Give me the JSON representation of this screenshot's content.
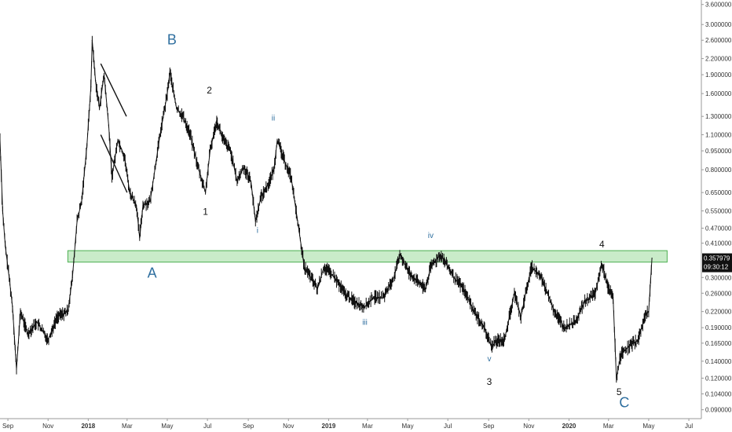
{
  "chart_data": {
    "type": "line",
    "title": "",
    "xlabel": "",
    "ylabel": "",
    "y_scale": "log",
    "ylim": [
      0.083,
      3.75
    ],
    "xlim": [
      "2017-08-20",
      "2020-07-20"
    ],
    "grid": false,
    "legend": "none",
    "colors": {
      "price": "#111111",
      "zone_fill": "#bfe8bf",
      "zone_border": "#4caf50",
      "wave_label": "#2f6f9f",
      "badge_bg": "#111111"
    },
    "x_ticks": [
      {
        "date": "2017-09-01",
        "label": "Sep",
        "bold": false
      },
      {
        "date": "2017-11-01",
        "label": "Nov",
        "bold": false
      },
      {
        "date": "2018-01-01",
        "label": "2018",
        "bold": true
      },
      {
        "date": "2018-03-01",
        "label": "Mar",
        "bold": false
      },
      {
        "date": "2018-05-01",
        "label": "May",
        "bold": false
      },
      {
        "date": "2018-07-01",
        "label": "Jul",
        "bold": false
      },
      {
        "date": "2018-09-01",
        "label": "Sep",
        "bold": false
      },
      {
        "date": "2018-11-01",
        "label": "Nov",
        "bold": false
      },
      {
        "date": "2019-01-01",
        "label": "2019",
        "bold": true
      },
      {
        "date": "2019-03-01",
        "label": "Mar",
        "bold": false
      },
      {
        "date": "2019-05-01",
        "label": "May",
        "bold": false
      },
      {
        "date": "2019-07-01",
        "label": "Jul",
        "bold": false
      },
      {
        "date": "2019-09-01",
        "label": "Sep",
        "bold": false
      },
      {
        "date": "2019-11-01",
        "label": "Nov",
        "bold": false
      },
      {
        "date": "2020-01-01",
        "label": "2020",
        "bold": true
      },
      {
        "date": "2020-03-01",
        "label": "Mar",
        "bold": false
      },
      {
        "date": "2020-05-01",
        "label": "May",
        "bold": false
      },
      {
        "date": "2020-07-01",
        "label": "Jul",
        "bold": false
      }
    ],
    "y_ticks": [
      {
        "value": 3.6,
        "label": "3.600000"
      },
      {
        "value": 3.0,
        "label": "3.000000"
      },
      {
        "value": 2.6,
        "label": "2.600000"
      },
      {
        "value": 2.2,
        "label": "2.200000"
      },
      {
        "value": 1.9,
        "label": "1.900000"
      },
      {
        "value": 1.6,
        "label": "1.600000"
      },
      {
        "value": 1.3,
        "label": "1.300000"
      },
      {
        "value": 1.1,
        "label": "1.100000"
      },
      {
        "value": 0.95,
        "label": "0.950000"
      },
      {
        "value": 0.8,
        "label": "0.800000"
      },
      {
        "value": 0.65,
        "label": "0.650000"
      },
      {
        "value": 0.55,
        "label": "0.550000"
      },
      {
        "value": 0.47,
        "label": "0.470000"
      },
      {
        "value": 0.41,
        "label": "0.410000"
      },
      {
        "value": 0.3,
        "label": "0.300000"
      },
      {
        "value": 0.26,
        "label": "0.260000"
      },
      {
        "value": 0.22,
        "label": "0.220000"
      },
      {
        "value": 0.19,
        "label": "0.190000"
      },
      {
        "value": 0.165,
        "label": "0.165000"
      },
      {
        "value": 0.14,
        "label": "0.140000"
      },
      {
        "value": 0.12,
        "label": "0.120000"
      },
      {
        "value": 0.104,
        "label": "0.104000"
      },
      {
        "value": 0.09,
        "label": "0.090000"
      }
    ],
    "price_badge": {
      "value": 0.357979,
      "label": "0.357979"
    },
    "countdown": "09:30:12",
    "series": [
      {
        "values": [
          {
            "x": "2017-08-20",
            "y": 1.05
          },
          {
            "x": "2017-08-24",
            "y": 0.55
          },
          {
            "x": "2017-08-28",
            "y": 0.4
          },
          {
            "x": "2017-09-03",
            "y": 0.3
          },
          {
            "x": "2017-09-08",
            "y": 0.23
          },
          {
            "x": "2017-09-14",
            "y": 0.13
          },
          {
            "x": "2017-09-20",
            "y": 0.22
          },
          {
            "x": "2017-10-01",
            "y": 0.18
          },
          {
            "x": "2017-10-15",
            "y": 0.2
          },
          {
            "x": "2017-11-01",
            "y": 0.17
          },
          {
            "x": "2017-11-15",
            "y": 0.21
          },
          {
            "x": "2017-12-01",
            "y": 0.22
          },
          {
            "x": "2017-12-08",
            "y": 0.3
          },
          {
            "x": "2017-12-15",
            "y": 0.5
          },
          {
            "x": "2017-12-22",
            "y": 0.6
          },
          {
            "x": "2017-12-30",
            "y": 1.0
          },
          {
            "x": "2018-01-05",
            "y": 1.7
          },
          {
            "x": "2018-01-07",
            "y": 2.6
          },
          {
            "x": "2018-01-12",
            "y": 1.8
          },
          {
            "x": "2018-01-18",
            "y": 1.4
          },
          {
            "x": "2018-01-25",
            "y": 1.9
          },
          {
            "x": "2018-02-01",
            "y": 1.2
          },
          {
            "x": "2018-02-06",
            "y": 0.75
          },
          {
            "x": "2018-02-15",
            "y": 1.05
          },
          {
            "x": "2018-02-25",
            "y": 0.9
          },
          {
            "x": "2018-03-05",
            "y": 0.65
          },
          {
            "x": "2018-03-15",
            "y": 0.58
          },
          {
            "x": "2018-03-20",
            "y": 0.43
          },
          {
            "x": "2018-03-25",
            "y": 0.58
          },
          {
            "x": "2018-04-05",
            "y": 0.6
          },
          {
            "x": "2018-04-20",
            "y": 1.1
          },
          {
            "x": "2018-05-01",
            "y": 1.6
          },
          {
            "x": "2018-05-05",
            "y": 1.95
          },
          {
            "x": "2018-05-15",
            "y": 1.4
          },
          {
            "x": "2018-05-25",
            "y": 1.3
          },
          {
            "x": "2018-06-05",
            "y": 1.1
          },
          {
            "x": "2018-06-15",
            "y": 0.85
          },
          {
            "x": "2018-06-28",
            "y": 0.65
          },
          {
            "x": "2018-07-05",
            "y": 0.95
          },
          {
            "x": "2018-07-15",
            "y": 1.25
          },
          {
            "x": "2018-07-25",
            "y": 1.05
          },
          {
            "x": "2018-08-05",
            "y": 0.95
          },
          {
            "x": "2018-08-15",
            "y": 0.72
          },
          {
            "x": "2018-08-25",
            "y": 0.82
          },
          {
            "x": "2018-09-05",
            "y": 0.72
          },
          {
            "x": "2018-09-12",
            "y": 0.5
          },
          {
            "x": "2018-09-20",
            "y": 0.62
          },
          {
            "x": "2018-10-01",
            "y": 0.7
          },
          {
            "x": "2018-10-10",
            "y": 0.8
          },
          {
            "x": "2018-10-15",
            "y": 1.05
          },
          {
            "x": "2018-10-25",
            "y": 0.88
          },
          {
            "x": "2018-11-05",
            "y": 0.75
          },
          {
            "x": "2018-11-15",
            "y": 0.5
          },
          {
            "x": "2018-11-25",
            "y": 0.33
          },
          {
            "x": "2018-12-05",
            "y": 0.3
          },
          {
            "x": "2018-12-15",
            "y": 0.27
          },
          {
            "x": "2018-12-25",
            "y": 0.33
          },
          {
            "x": "2019-01-10",
            "y": 0.3
          },
          {
            "x": "2019-01-25",
            "y": 0.26
          },
          {
            "x": "2019-02-10",
            "y": 0.24
          },
          {
            "x": "2019-02-25",
            "y": 0.23
          },
          {
            "x": "2019-03-10",
            "y": 0.25
          },
          {
            "x": "2019-03-25",
            "y": 0.25
          },
          {
            "x": "2019-04-10",
            "y": 0.3
          },
          {
            "x": "2019-04-20",
            "y": 0.37
          },
          {
            "x": "2019-05-01",
            "y": 0.32
          },
          {
            "x": "2019-05-15",
            "y": 0.29
          },
          {
            "x": "2019-05-28",
            "y": 0.27
          },
          {
            "x": "2019-06-05",
            "y": 0.33
          },
          {
            "x": "2019-06-20",
            "y": 0.37
          },
          {
            "x": "2019-07-01",
            "y": 0.33
          },
          {
            "x": "2019-07-10",
            "y": 0.3
          },
          {
            "x": "2019-07-25",
            "y": 0.27
          },
          {
            "x": "2019-08-10",
            "y": 0.22
          },
          {
            "x": "2019-08-25",
            "y": 0.19
          },
          {
            "x": "2019-09-05",
            "y": 0.16
          },
          {
            "x": "2019-09-15",
            "y": 0.17
          },
          {
            "x": "2019-09-25",
            "y": 0.17
          },
          {
            "x": "2019-10-10",
            "y": 0.26
          },
          {
            "x": "2019-10-20",
            "y": 0.21
          },
          {
            "x": "2019-10-30",
            "y": 0.28
          },
          {
            "x": "2019-11-05",
            "y": 0.33
          },
          {
            "x": "2019-11-20",
            "y": 0.3
          },
          {
            "x": "2019-12-10",
            "y": 0.22
          },
          {
            "x": "2019-12-25",
            "y": 0.19
          },
          {
            "x": "2020-01-10",
            "y": 0.2
          },
          {
            "x": "2020-01-25",
            "y": 0.24
          },
          {
            "x": "2020-02-10",
            "y": 0.26
          },
          {
            "x": "2020-02-20",
            "y": 0.34
          },
          {
            "x": "2020-03-01",
            "y": 0.27
          },
          {
            "x": "2020-03-08",
            "y": 0.25
          },
          {
            "x": "2020-03-13",
            "y": 0.12
          },
          {
            "x": "2020-03-20",
            "y": 0.15
          },
          {
            "x": "2020-04-01",
            "y": 0.16
          },
          {
            "x": "2020-04-15",
            "y": 0.17
          },
          {
            "x": "2020-04-25",
            "y": 0.21
          },
          {
            "x": "2020-05-01",
            "y": 0.22
          },
          {
            "x": "2020-05-06",
            "y": 0.358
          }
        ]
      }
    ],
    "resistance_zone": {
      "low": 0.345,
      "high": 0.383,
      "from": "2017-12-01",
      "to": "2020-05-29"
    },
    "trend_lines": [
      {
        "from": {
          "x": "2018-01-20",
          "y": 2.1
        },
        "to": {
          "x": "2018-02-28",
          "y": 1.3
        }
      },
      {
        "from": {
          "x": "2018-01-20",
          "y": 1.1
        },
        "to": {
          "x": "2018-03-01",
          "y": 0.65
        }
      }
    ],
    "annotations": [
      {
        "text": "B",
        "x": "2018-05-08",
        "y": 2.5,
        "style": "big"
      },
      {
        "text": "A",
        "x": "2018-04-08",
        "y": 0.3,
        "style": "big"
      },
      {
        "text": "C",
        "x": "2020-03-25",
        "y": 0.092,
        "style": "big"
      },
      {
        "text": "2",
        "x": "2018-07-04",
        "y": 1.6,
        "style": "mid"
      },
      {
        "text": "1",
        "x": "2018-06-28",
        "y": 0.53,
        "style": "mid"
      },
      {
        "text": "3",
        "x": "2019-09-02",
        "y": 0.113,
        "style": "mid"
      },
      {
        "text": "4",
        "x": "2020-02-20",
        "y": 0.395,
        "style": "mid"
      },
      {
        "text": "5",
        "x": "2020-03-17",
        "y": 0.103,
        "style": "mid"
      },
      {
        "text": "ii",
        "x": "2018-10-09",
        "y": 1.25,
        "style": "small"
      },
      {
        "text": "i",
        "x": "2018-09-15",
        "y": 0.45,
        "style": "small"
      },
      {
        "text": "iii",
        "x": "2019-02-25",
        "y": 0.195,
        "style": "small"
      },
      {
        "text": "iv",
        "x": "2019-06-05",
        "y": 0.43,
        "style": "small"
      },
      {
        "text": "v",
        "x": "2019-09-02",
        "y": 0.14,
        "style": "small"
      }
    ]
  }
}
